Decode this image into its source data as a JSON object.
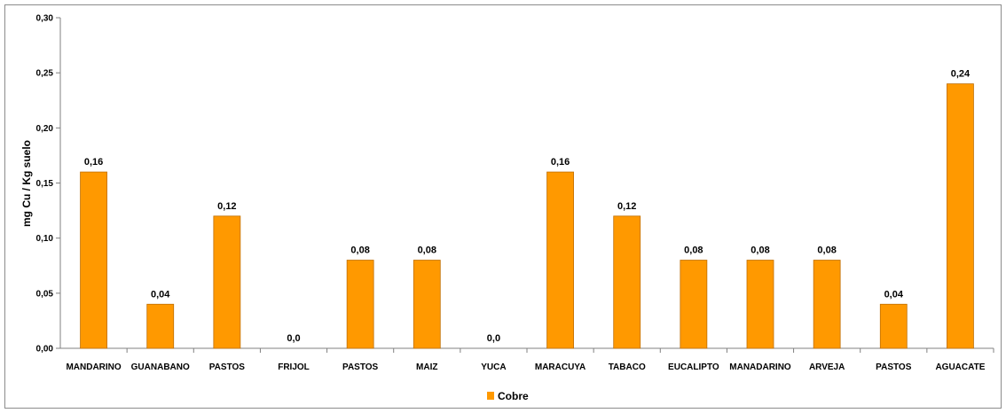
{
  "chart_data": {
    "type": "bar",
    "title": "",
    "xlabel": "",
    "ylabel": "mg Cu / Kg suelo",
    "ylim": [
      0,
      0.3
    ],
    "yticks": [
      "0,00",
      "0,05",
      "0,10",
      "0,15",
      "0,20",
      "0,25",
      "0,30"
    ],
    "grid": false,
    "legend": "bottom",
    "categories": [
      "MANDARINO",
      "GUANABANO",
      "PASTOS",
      "FRIJOL",
      "PASTOS",
      "MAIZ",
      "YUCA",
      "MARACUYA",
      "TABACO",
      "EUCALIPTO",
      "MANADARINO",
      "ARVEJA",
      "PASTOS",
      "AGUACATE"
    ],
    "series": [
      {
        "name": "Cobre",
        "color": "#FF9900",
        "values": [
          0.16,
          0.04,
          0.12,
          0.0,
          0.08,
          0.08,
          0.0,
          0.16,
          0.12,
          0.08,
          0.08,
          0.08,
          0.04,
          0.24
        ],
        "labels": [
          "0,16",
          "0,04",
          "0,12",
          "0,0",
          "0,08",
          "0,08",
          "0,0",
          "0,16",
          "0,12",
          "0,08",
          "0,08",
          "0,08",
          "0,04",
          "0,24"
        ]
      }
    ]
  }
}
